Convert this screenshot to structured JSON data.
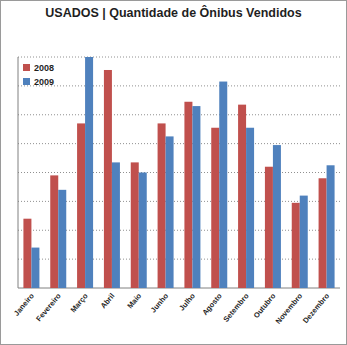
{
  "chart_data": {
    "type": "bar",
    "title": "USADOS | Quantidade de Ônibus Vendidos",
    "categories": [
      "Janeiro",
      "Fevereiro",
      "Março",
      "Abril",
      "Maio",
      "Junho",
      "Julho",
      "Agosto",
      "Setembro",
      "Outubro",
      "Novembro",
      "Dezembro"
    ],
    "series": [
      {
        "name": "2008",
        "color": "#c0504d",
        "values": [
          2.4,
          3.9,
          5.7,
          7.55,
          4.35,
          5.7,
          6.45,
          5.55,
          6.35,
          4.2,
          2.95,
          3.8
        ]
      },
      {
        "name": "2009",
        "color": "#4f81bd",
        "values": [
          1.4,
          3.4,
          8.0,
          4.35,
          4.0,
          5.25,
          6.3,
          7.15,
          5.55,
          4.95,
          3.2,
          4.25
        ]
      }
    ],
    "ylim": [
      0,
      8
    ],
    "yticks": [
      0,
      1,
      2,
      3,
      4,
      5,
      6,
      7,
      8
    ],
    "grid": true,
    "legend": "top-left",
    "tick_labels": "x"
  }
}
